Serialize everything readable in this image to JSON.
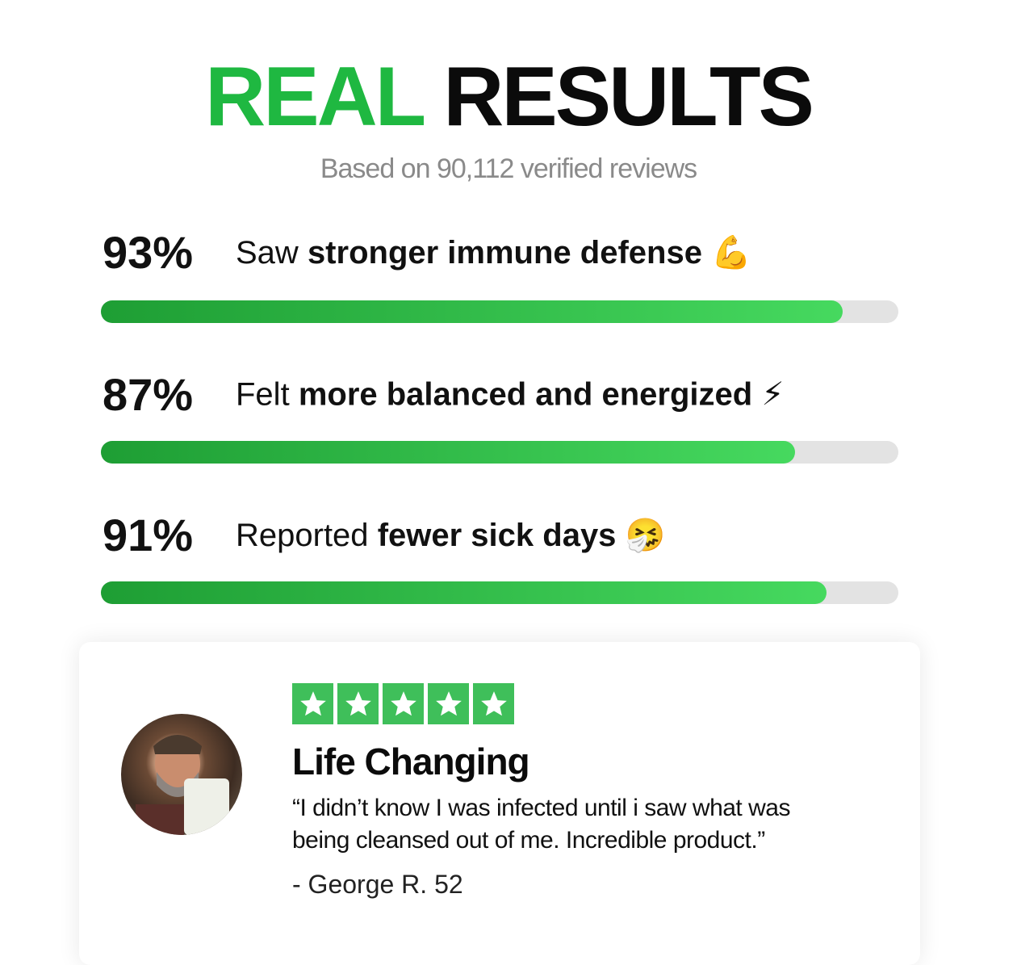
{
  "header": {
    "title_highlight": "REAL",
    "title_rest": "RESULTS",
    "subtitle": "Based on 90,112 verified reviews"
  },
  "stats": [
    {
      "value": 93,
      "value_label": "93%",
      "prefix": "Saw",
      "highlight": "stronger immune defense",
      "emoji": "💪"
    },
    {
      "value": 87,
      "value_label": "87%",
      "prefix": "Felt",
      "highlight": "more balanced and energized",
      "emoji": "⚡"
    },
    {
      "value": 91,
      "value_label": "91%",
      "prefix": "Reported",
      "highlight": "fewer sick days",
      "emoji": "🤧"
    }
  ],
  "review": {
    "title": "Life Changing",
    "quote_lines": [
      "“I didn’t know I was infected until i saw what was",
      "being cleansed out of me. Incredible product.”"
    ],
    "author": "- George R. 52"
  }
}
